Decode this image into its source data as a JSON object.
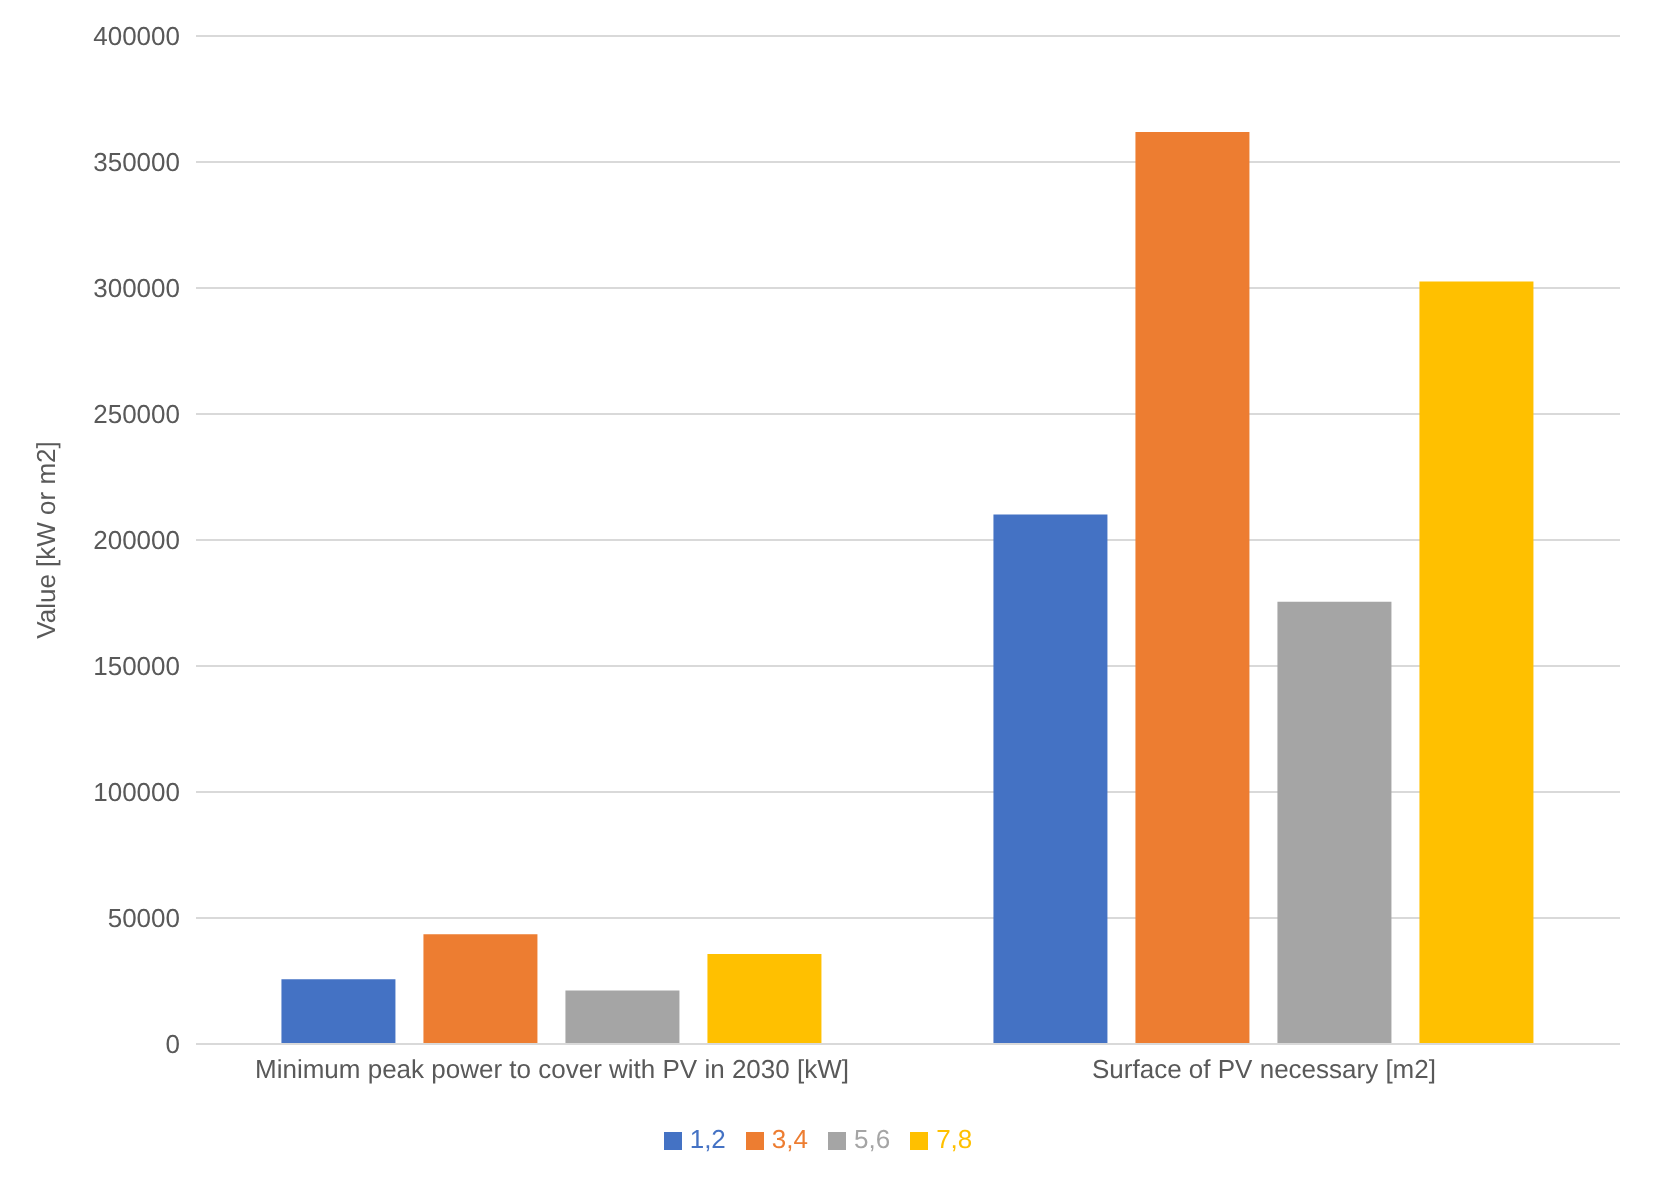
{
  "chart_data": {
    "type": "bar",
    "ylabel": "Value [kW or m2]",
    "categories": [
      "Minimum peak power to cover with PV in 2030 [kW]",
      "Surface of PV necessary [m2]"
    ],
    "series": [
      {
        "name": "1,2",
        "color": "#4472c4",
        "values": [
          25700,
          210100
        ]
      },
      {
        "name": "3,4",
        "color": "#ed7d31",
        "values": [
          43600,
          361900
        ]
      },
      {
        "name": "5,6",
        "color": "#a5a5a5",
        "values": [
          21200,
          175500
        ]
      },
      {
        "name": "7,8",
        "color": "#ffc000",
        "values": [
          35700,
          302600
        ]
      }
    ],
    "ylim": [
      0,
      400000
    ],
    "yticks": [
      0,
      50000,
      100000,
      150000,
      200000,
      250000,
      300000,
      350000,
      400000
    ],
    "grid": "y",
    "legend": "bottom"
  }
}
